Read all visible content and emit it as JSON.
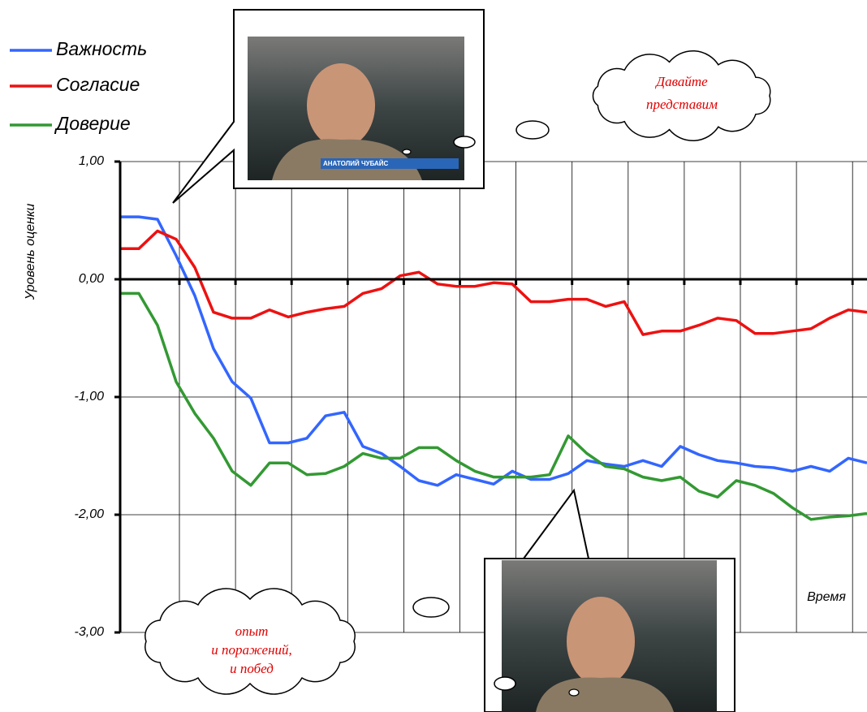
{
  "chart_data": {
    "type": "line",
    "y_label": "Уровень оценки",
    "x_label": "Время",
    "ylim": [
      -3,
      1
    ],
    "yticks": [
      {
        "value": -3,
        "label": "-3,00"
      },
      {
        "value": -2,
        "label": "-2,00"
      },
      {
        "value": -1,
        "label": "-1,00"
      },
      {
        "value": 0,
        "label": "0,00"
      },
      {
        "value": 1,
        "label": "1,00"
      }
    ],
    "grid": true,
    "series": [
      {
        "name": "Важность",
        "color": "#3366ff",
        "values": [
          0.53,
          0.53,
          0.51,
          0.2,
          -0.14,
          -0.59,
          -0.87,
          -1.01,
          -1.39,
          -1.39,
          -1.35,
          -1.16,
          -1.13,
          -1.42,
          -1.48,
          -1.59,
          -1.71,
          -1.75,
          -1.66,
          -1.7,
          -1.74,
          -1.63,
          -1.7,
          -1.7,
          -1.65,
          -1.54,
          -1.57,
          -1.59,
          -1.54,
          -1.59,
          -1.42,
          -1.49,
          -1.54,
          -1.56,
          -1.59,
          -1.6,
          -1.63,
          -1.59,
          -1.63,
          -1.52,
          -1.56
        ]
      },
      {
        "name": "Согласие",
        "color": "#ee1111",
        "values": [
          0.26,
          0.26,
          0.41,
          0.34,
          0.1,
          -0.28,
          -0.33,
          -0.33,
          -0.26,
          -0.32,
          -0.28,
          -0.25,
          -0.23,
          -0.12,
          -0.08,
          0.03,
          0.06,
          -0.04,
          -0.06,
          -0.06,
          -0.03,
          -0.04,
          -0.19,
          -0.19,
          -0.17,
          -0.17,
          -0.23,
          -0.19,
          -0.47,
          -0.44,
          -0.44,
          -0.39,
          -0.33,
          -0.35,
          -0.46,
          -0.46,
          -0.44,
          -0.42,
          -0.33,
          -0.26,
          -0.28
        ]
      },
      {
        "name": "Доверие",
        "color": "#339933",
        "values": [
          -0.12,
          -0.12,
          -0.39,
          -0.87,
          -1.14,
          -1.35,
          -1.63,
          -1.75,
          -1.56,
          -1.56,
          -1.66,
          -1.65,
          -1.59,
          -1.48,
          -1.52,
          -1.52,
          -1.43,
          -1.43,
          -1.54,
          -1.63,
          -1.68,
          -1.68,
          -1.68,
          -1.66,
          -1.33,
          -1.48,
          -1.59,
          -1.61,
          -1.68,
          -1.71,
          -1.68,
          -1.8,
          -1.85,
          -1.71,
          -1.75,
          -1.82,
          -1.94,
          -2.04,
          -2.02,
          -2.01,
          -1.99
        ]
      }
    ],
    "annotations": {
      "cloud_top": [
        "Давайте",
        "представим"
      ],
      "cloud_bottom": [
        "опыт",
        "и поражений,",
        "и побед"
      ],
      "photo_caption": "АНАТОЛИЙ ЧУБАЙС"
    }
  }
}
